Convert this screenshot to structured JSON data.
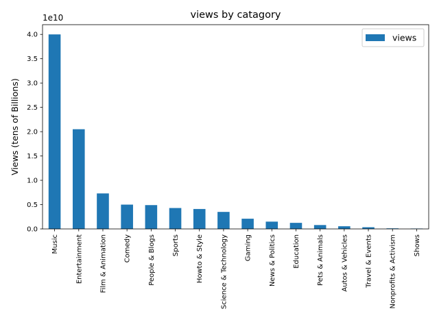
{
  "chart_data": {
    "type": "bar",
    "title": "views by catagory",
    "xlabel": "",
    "ylabel": "Views (tens of Billions)",
    "offset_text": "1e10",
    "y_scale": 10000000000.0,
    "ylim": [
      0,
      42000000000
    ],
    "y_ticks": [
      0,
      5000000000,
      10000000000,
      15000000000,
      20000000000,
      25000000000,
      30000000000,
      35000000000,
      40000000000
    ],
    "y_tick_labels": [
      "0.0",
      "0.5",
      "1.0",
      "1.5",
      "2.0",
      "2.5",
      "3.0",
      "3.5",
      "4.0"
    ],
    "grid": false,
    "legend": {
      "position": "top-right",
      "entries": [
        "views"
      ]
    },
    "color": "#1f77b4",
    "categories": [
      "Music",
      "Entertainment",
      "Film & Animation",
      "Comedy",
      "People & Blogs",
      "Sports",
      "Howto & Style",
      "Science & Technology",
      "Gaming",
      "News & Politics",
      "Education",
      "Pets & Animals",
      "Autos & Vehicles",
      "Travel & Events",
      "Nonprofits & Activism",
      "Shows"
    ],
    "series": [
      {
        "name": "views",
        "values": [
          40000000000,
          20500000000,
          7300000000,
          5000000000,
          4900000000,
          4300000000,
          4100000000,
          3500000000,
          2100000000,
          1500000000,
          1250000000,
          800000000,
          550000000,
          350000000,
          120000000,
          80000000
        ]
      }
    ]
  }
}
